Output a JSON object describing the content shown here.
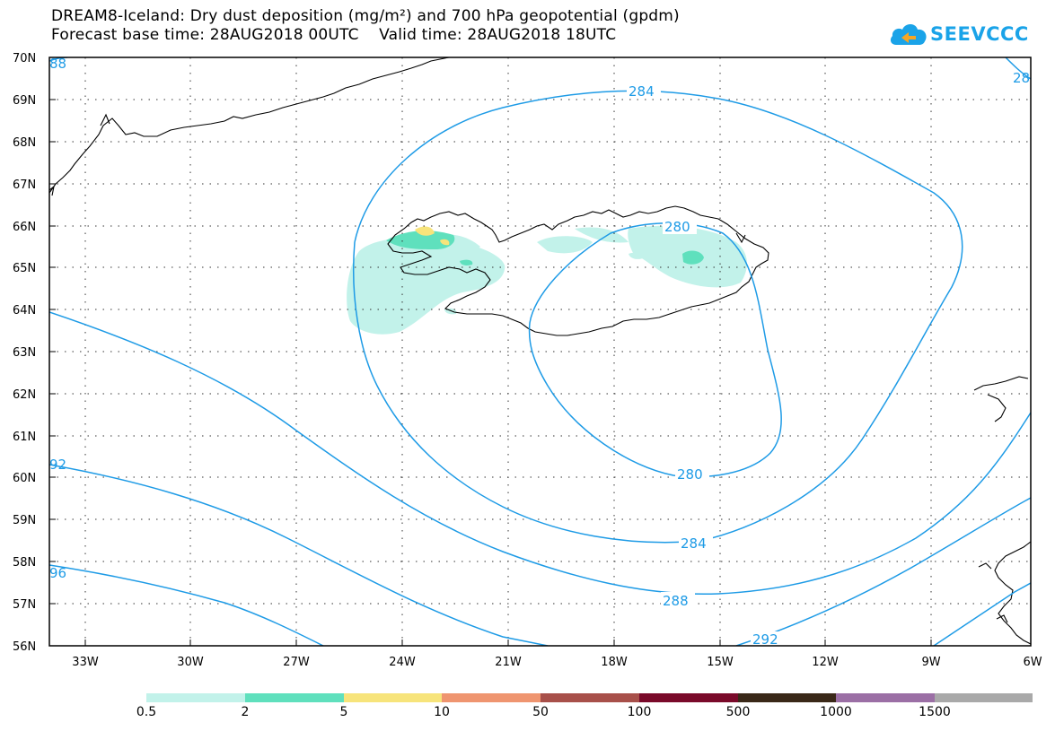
{
  "title_line1": "DREAM8-Iceland: Dry dust deposition (mg/m²) and 700 hPa geopotential (gpdm)",
  "title_line2": "Forecast base time: 28AUG2018 00UTC    Valid time: 28AUG2018 18UTC",
  "logo_text": "SEEVCCC",
  "lat_labels": [
    "70N",
    "69N",
    "68N",
    "67N",
    "66N",
    "65N",
    "64N",
    "63N",
    "62N",
    "61N",
    "60N",
    "59N",
    "58N",
    "57N",
    "56N"
  ],
  "lon_labels": [
    "33W",
    "30W",
    "27W",
    "24W",
    "21W",
    "18W",
    "15W",
    "12W",
    "9W",
    "6W"
  ],
  "contour_labels": [
    "284",
    "280",
    "280",
    "284",
    "288",
    "292",
    "92",
    "96",
    "88",
    "28"
  ],
  "legend": {
    "colors": [
      "#c2f2ea",
      "#5fe0bd",
      "#f7e47b",
      "#ef9570",
      "#a8504a",
      "#7a0a2a",
      "#3a2818",
      "#9b6fa5",
      "#a9a9a9"
    ],
    "labels": [
      "0.5",
      "2",
      "5",
      "10",
      "50",
      "100",
      "500",
      "1000",
      "1500"
    ]
  },
  "colors": {
    "contour": "#1e9be6",
    "coast": "#000000",
    "logo": "#1aa3e8"
  }
}
